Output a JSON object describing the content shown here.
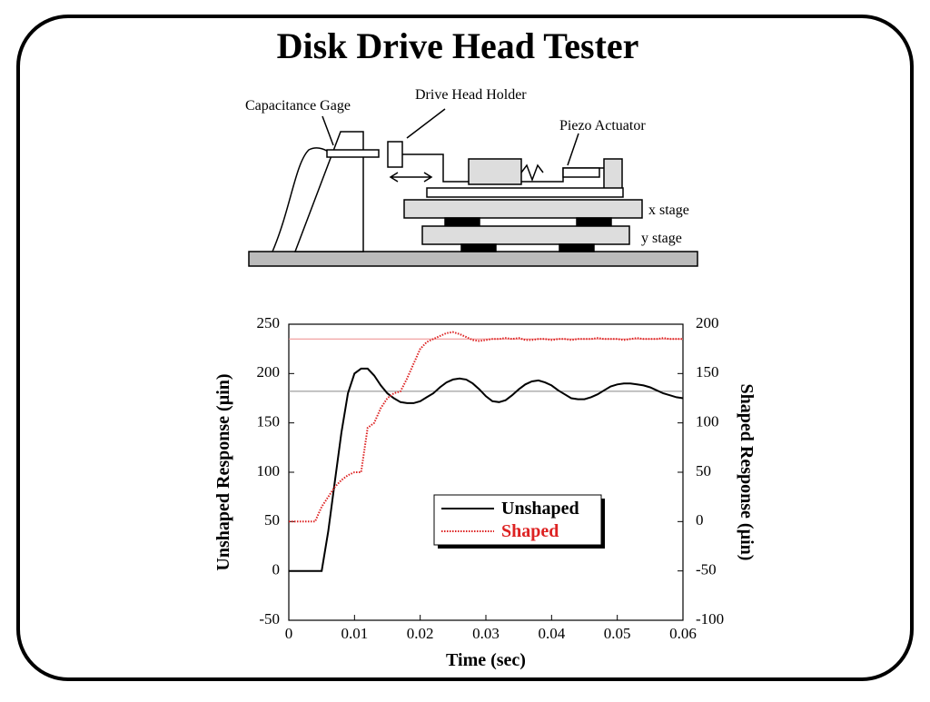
{
  "slide": {
    "title": "Disk Drive Head Tester"
  },
  "diagram": {
    "labels": [
      "Capacitance Gage",
      "Drive Head Holder",
      "Piezo Actuator",
      "x stage",
      "y stage"
    ]
  },
  "chart_data": {
    "type": "line",
    "xlabel": "Time (sec)",
    "ylabel": "Unshaped Response (µin)",
    "y2label": "Shaped Response (µin)",
    "xlim": [
      0,
      0.06
    ],
    "xticks": [
      0,
      0.01,
      0.02,
      0.03,
      0.04,
      0.05,
      0.06
    ],
    "ylim": [
      -50,
      250
    ],
    "yticks": [
      -50,
      0,
      50,
      100,
      150,
      200,
      250
    ],
    "y2lim": [
      -100,
      200
    ],
    "y2ticks": [
      -100,
      -50,
      0,
      50,
      100,
      150,
      200
    ],
    "x": [
      0,
      0.001,
      0.002,
      0.003,
      0.004,
      0.005,
      0.006,
      0.007,
      0.008,
      0.009,
      0.01,
      0.011,
      0.012,
      0.013,
      0.014,
      0.015,
      0.016,
      0.017,
      0.018,
      0.019,
      0.02,
      0.021,
      0.022,
      0.023,
      0.024,
      0.025,
      0.026,
      0.027,
      0.028,
      0.029,
      0.03,
      0.031,
      0.032,
      0.033,
      0.034,
      0.035,
      0.036,
      0.037,
      0.038,
      0.039,
      0.04,
      0.041,
      0.042,
      0.043,
      0.044,
      0.045,
      0.046,
      0.047,
      0.048,
      0.049,
      0.05,
      0.051,
      0.052,
      0.053,
      0.054,
      0.055,
      0.056,
      0.057,
      0.058,
      0.059,
      0.06
    ],
    "series": [
      {
        "name": "Unshaped",
        "color": "#000000",
        "style": "solid",
        "values": [
          0,
          0,
          0,
          0,
          0,
          0,
          40,
          90,
          140,
          180,
          200,
          205,
          205,
          198,
          188,
          180,
          175,
          171,
          170,
          170,
          172,
          176,
          180,
          186,
          191,
          194,
          195,
          194,
          190,
          184,
          177,
          172,
          171,
          173,
          178,
          184,
          189,
          192,
          193,
          191,
          188,
          183,
          179,
          175,
          174,
          174,
          176,
          179,
          183,
          187,
          189,
          190,
          190,
          189,
          188,
          186,
          183,
          180,
          178,
          176,
          175
        ]
      },
      {
        "name": "Shaped",
        "color": "#dd2222",
        "style": "dotted",
        "axis": "y2",
        "values": [
          0,
          0,
          0,
          0,
          0,
          15,
          25,
          35,
          42,
          47,
          50,
          50,
          95,
          100,
          115,
          125,
          130,
          132,
          145,
          160,
          175,
          182,
          185,
          188,
          191,
          192,
          190,
          187,
          184,
          183,
          184,
          185,
          185,
          186,
          185,
          186,
          184,
          184,
          185,
          185,
          184,
          185,
          185,
          184,
          185,
          185,
          185,
          186,
          185,
          185,
          185,
          184,
          185,
          186,
          185,
          185,
          185,
          186,
          185,
          185,
          185
        ]
      }
    ],
    "hlines": [
      {
        "axis": "y",
        "value": 182,
        "color": "#888888"
      },
      {
        "axis": "y2",
        "value": 185,
        "color": "#ee8888"
      }
    ],
    "legend": "lower-right"
  }
}
